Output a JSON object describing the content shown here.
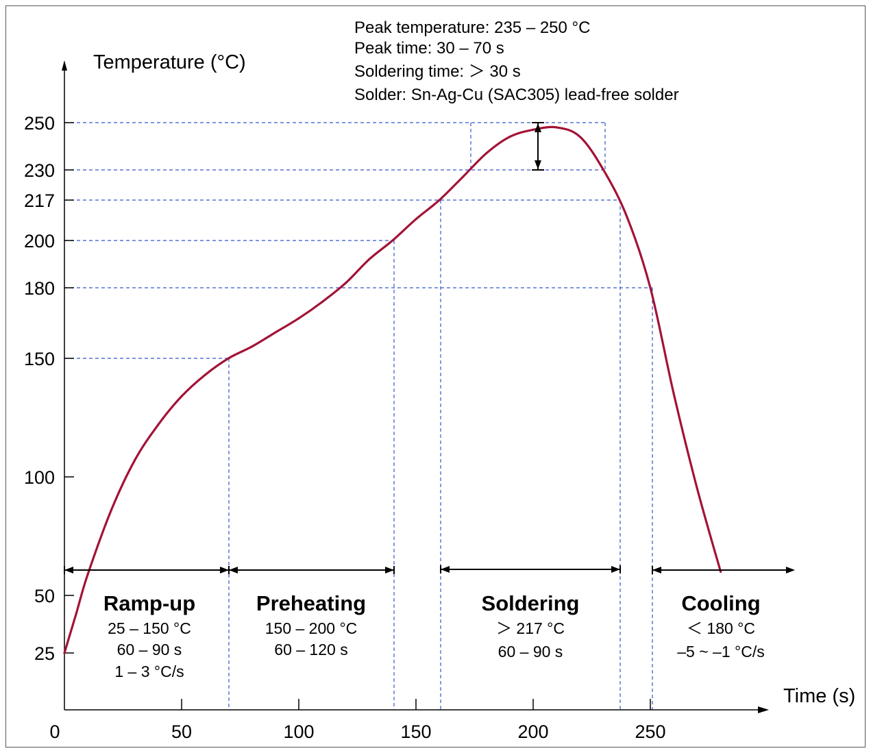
{
  "chart_data": {
    "type": "line",
    "xlabel": "Time (s)",
    "ylabel": "Temperature (°C)",
    "x_ticks": [
      "0",
      "50",
      "100",
      "150",
      "200",
      "250"
    ],
    "y_ticks": [
      "25",
      "50",
      "100",
      "150",
      "180",
      "200",
      "217",
      "230",
      "250"
    ],
    "notes": [
      "Peak temperature: 235 – 250 °C",
      "Peak time: 30 – 70 s",
      "Soldering time: ＞ 30 s",
      "Solder: Sn-Ag-Cu (SAC305) lead-free solder"
    ],
    "phases": [
      {
        "title": "Ramp-up",
        "lines": [
          "25 – 150 °C",
          "60 – 90 s",
          "1 – 3 °C/s"
        ]
      },
      {
        "title": "Preheating",
        "lines": [
          "150 – 200 °C",
          "60 – 120 s"
        ]
      },
      {
        "title": "Soldering",
        "lines": [
          "＞ 217 °C",
          "60 – 90 s"
        ]
      },
      {
        "title": "Cooling",
        "lines": [
          "＜ 180 °C",
          "–5 ~ –1 °C/s"
        ]
      }
    ],
    "curve": {
      "x": [
        0,
        5,
        10,
        20,
        30,
        40,
        50,
        60,
        70,
        80,
        90,
        100,
        110,
        120,
        130,
        140,
        150,
        160,
        170,
        180,
        190,
        200,
        210,
        220,
        230,
        240,
        250,
        260,
        270,
        280
      ],
      "y": [
        25,
        42,
        59,
        86,
        107,
        122,
        134,
        143,
        150,
        155,
        161,
        167,
        174,
        182,
        192,
        200,
        209,
        217,
        227,
        237,
        244,
        247,
        248,
        244,
        230,
        210,
        180,
        135,
        95,
        60
      ]
    },
    "colors": {
      "curve": "#a31236",
      "guides": "#3355cc",
      "axis": "#000000"
    }
  }
}
